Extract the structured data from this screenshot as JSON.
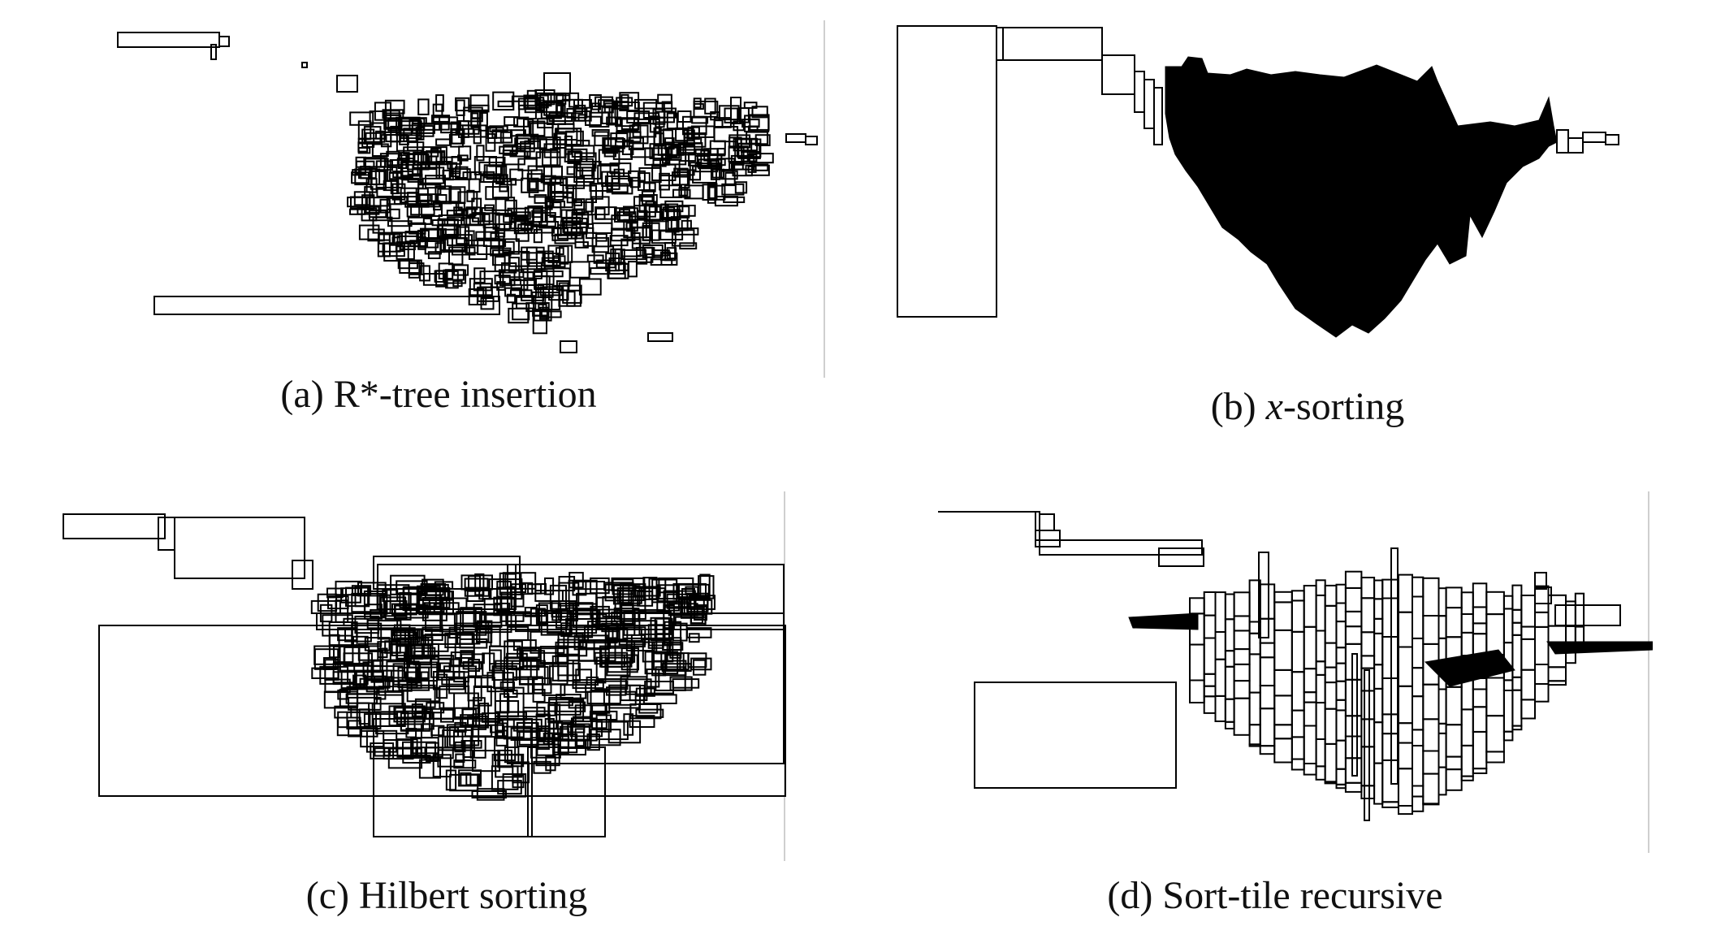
{
  "panels": [
    {
      "id": "a",
      "caption_prefix": "(a) ",
      "caption_italic": "",
      "caption_rest": "R*-tree insertion"
    },
    {
      "id": "b",
      "caption_prefix": "(b) ",
      "caption_italic": "x",
      "caption_rest": "-sorting"
    },
    {
      "id": "c",
      "caption_prefix": "(c) ",
      "caption_italic": "",
      "caption_rest": "Hilbert sorting"
    },
    {
      "id": "d",
      "caption_prefix": "(d) ",
      "caption_italic": "",
      "caption_rest": "Sort-tile recursive"
    }
  ]
}
